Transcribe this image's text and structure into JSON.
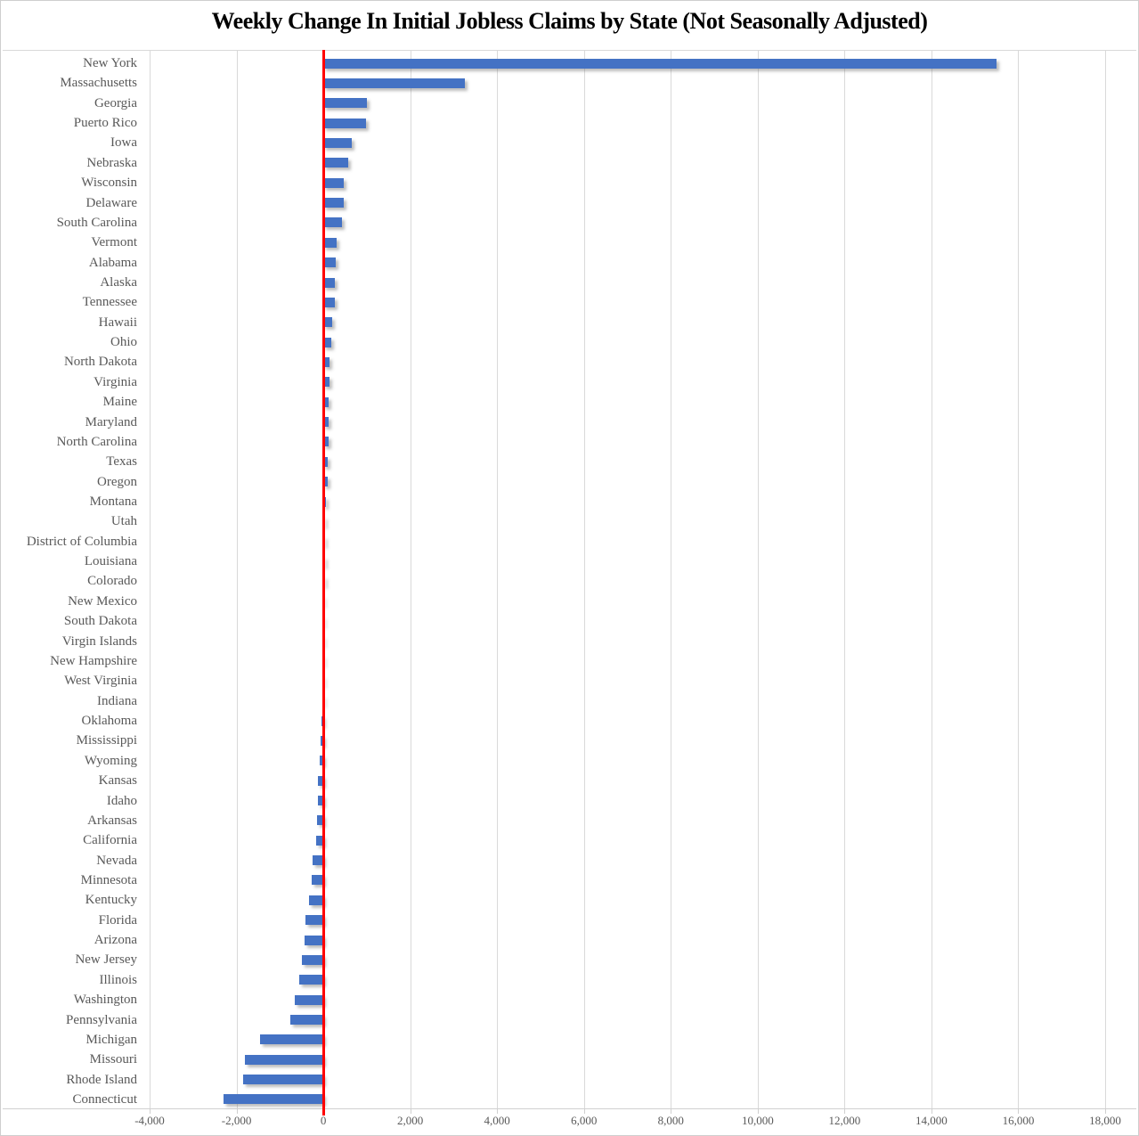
{
  "chart_data": {
    "type": "bar",
    "orientation": "horizontal",
    "title": "Weekly Change In Initial Jobless Claims by State (Not Seasonally Adjusted)",
    "categories": [
      "New York",
      "Massachusetts",
      "Georgia",
      "Puerto Rico",
      "Iowa",
      "Nebraska",
      "Wisconsin",
      "Delaware",
      "South Carolina",
      "Vermont",
      "Alabama",
      "Alaska",
      "Tennessee",
      "Hawaii",
      "Ohio",
      "North Dakota",
      "Virginia",
      "Maine",
      "Maryland",
      "North Carolina",
      "Texas",
      "Oregon",
      "Montana",
      "Utah",
      "District of Columbia",
      "Louisiana",
      "Colorado",
      "New Mexico",
      "South Dakota",
      "Virgin Islands",
      "New Hampshire",
      "West Virginia",
      "Indiana",
      "Oklahoma",
      "Mississippi",
      "Wyoming",
      "Kansas",
      "Idaho",
      "Arkansas",
      "California",
      "Nevada",
      "Minnesota",
      "Kentucky",
      "Florida",
      "Arizona",
      "New Jersey",
      "Illinois",
      "Washington",
      "Pennsylvania",
      "Michigan",
      "Missouri",
      "Rhode Island",
      "Connecticut"
    ],
    "values": [
      15500,
      3260,
      1000,
      975,
      650,
      565,
      470,
      465,
      425,
      300,
      280,
      275,
      255,
      195,
      190,
      150,
      140,
      130,
      128,
      112,
      108,
      102,
      55,
      48,
      42,
      40,
      34,
      12,
      8,
      3,
      1,
      -4,
      -12,
      -35,
      -70,
      -78,
      -115,
      -122,
      -140,
      -160,
      -252,
      -268,
      -340,
      -415,
      -432,
      -490,
      -556,
      -655,
      -760,
      -1465,
      -1800,
      -1855,
      -2300
    ],
    "xlabel": "",
    "ylabel": "",
    "xlim": [
      -4000,
      18000
    ],
    "x_tick_step": 2000,
    "x_tick_labels": [
      "-4,000",
      "-2,000",
      "0",
      "2,000",
      "4,000",
      "6,000",
      "8,000",
      "10,000",
      "12,000",
      "14,000",
      "16,000",
      "18,000"
    ],
    "grid": true,
    "legend": "none",
    "bar_color": "#4472C4",
    "zero_line_color": "#FF0000",
    "gridline_color": "#D9D9D9",
    "axis_line_color": "#D0D0D0",
    "label_color": "#595959",
    "title_color": "#000000"
  }
}
